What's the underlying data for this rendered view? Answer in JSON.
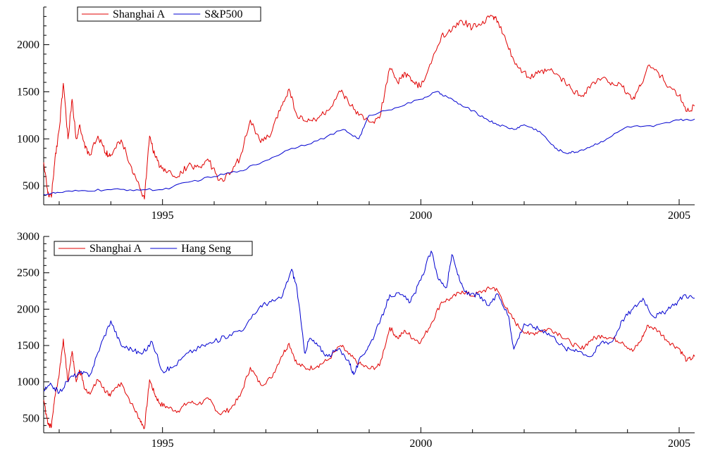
{
  "chart_data": [
    {
      "type": "line",
      "title": "",
      "xlabel": "",
      "ylabel": "",
      "xlim": [
        1992.7,
        2005.3
      ],
      "ylim": [
        300,
        2400
      ],
      "xticks": [
        1995,
        2000,
        2005
      ],
      "xtick_labels": [
        "1995",
        "2000",
        "2005"
      ],
      "yticks": [
        500,
        1000,
        1500,
        2000
      ],
      "ytick_labels": [
        "500",
        "1000",
        "1500",
        "2000"
      ],
      "grid": false,
      "legend": "top-left",
      "series": [
        {
          "name": "Shanghai A",
          "color": "#e00000",
          "x": [
            1992.7,
            1992.78,
            1992.85,
            1992.92,
            1993.0,
            1993.08,
            1993.17,
            1993.25,
            1993.33,
            1993.4,
            1993.5,
            1993.6,
            1993.75,
            1993.9,
            1994.0,
            1994.2,
            1994.4,
            1994.55,
            1994.65,
            1994.75,
            1994.85,
            1994.95,
            1995.1,
            1995.3,
            1995.5,
            1995.7,
            1995.9,
            1996.1,
            1996.3,
            1996.5,
            1996.7,
            1996.9,
            1997.1,
            1997.3,
            1997.45,
            1997.6,
            1997.8,
            1998.0,
            1998.2,
            1998.45,
            1998.6,
            1998.8,
            1999.0,
            1999.2,
            1999.4,
            1999.55,
            1999.7,
            1999.85,
            2000.0,
            2000.2,
            2000.4,
            2000.6,
            2000.8,
            2001.0,
            2001.2,
            2001.4,
            2001.5,
            2001.7,
            2001.9,
            2002.1,
            2002.3,
            2002.5,
            2002.7,
            2002.9,
            2003.1,
            2003.3,
            2003.5,
            2003.7,
            2003.9,
            2004.1,
            2004.25,
            2004.4,
            2004.6,
            2004.8,
            2005.0,
            2005.15,
            2005.3
          ],
          "values": [
            750,
            420,
            380,
            800,
            1100,
            1590,
            1000,
            1420,
            1000,
            1150,
            900,
            830,
            1030,
            850,
            830,
            990,
            700,
            500,
            360,
            1030,
            830,
            700,
            650,
            600,
            720,
            700,
            760,
            560,
            620,
            800,
            1200,
            960,
            1050,
            1350,
            1530,
            1250,
            1180,
            1220,
            1300,
            1500,
            1380,
            1250,
            1180,
            1220,
            1750,
            1600,
            1700,
            1600,
            1550,
            1800,
            2100,
            2150,
            2250,
            2180,
            2250,
            2300,
            2240,
            1950,
            1750,
            1650,
            1700,
            1730,
            1650,
            1540,
            1450,
            1580,
            1640,
            1600,
            1550,
            1420,
            1560,
            1780,
            1700,
            1550,
            1460,
            1290,
            1350
          ]
        },
        {
          "name": "S&P500",
          "color": "#0000d0",
          "x": [
            1992.7,
            1993.0,
            1993.5,
            1994.0,
            1994.5,
            1995.0,
            1995.5,
            1996.0,
            1996.5,
            1997.0,
            1997.5,
            1998.0,
            1998.5,
            1998.8,
            1999.0,
            1999.5,
            2000.0,
            2000.3,
            2000.5,
            2000.8,
            2001.0,
            2001.3,
            2001.5,
            2001.8,
            2002.0,
            2002.3,
            2002.6,
            2002.8,
            2003.0,
            2003.3,
            2003.6,
            2004.0,
            2004.5,
            2005.0,
            2005.3
          ],
          "values": [
            410,
            430,
            450,
            460,
            460,
            460,
            540,
            600,
            660,
            770,
            900,
            980,
            1100,
            1000,
            1250,
            1330,
            1420,
            1500,
            1450,
            1350,
            1300,
            1200,
            1150,
            1100,
            1150,
            1080,
            900,
            850,
            860,
            920,
            1000,
            1130,
            1130,
            1200,
            1210
          ]
        }
      ]
    },
    {
      "type": "line",
      "title": "",
      "xlabel": "",
      "ylabel": "",
      "xlim": [
        1992.7,
        2005.3
      ],
      "ylim": [
        300,
        3000
      ],
      "xticks": [
        1995,
        2000,
        2005
      ],
      "xtick_labels": [
        "1995",
        "2000",
        "2005"
      ],
      "yticks": [
        500,
        1000,
        1500,
        2000,
        2500,
        3000
      ],
      "ytick_labels": [
        "500",
        "1000",
        "1500",
        "2000",
        "2500",
        "3000"
      ],
      "grid": false,
      "legend": "top-left",
      "series": [
        {
          "name": "Shanghai A",
          "color": "#e00000",
          "x": [
            1992.7,
            1992.78,
            1992.85,
            1992.92,
            1993.0,
            1993.08,
            1993.17,
            1993.25,
            1993.33,
            1993.4,
            1993.5,
            1993.6,
            1993.75,
            1993.9,
            1994.0,
            1994.2,
            1994.4,
            1994.55,
            1994.65,
            1994.75,
            1994.85,
            1994.95,
            1995.1,
            1995.3,
            1995.5,
            1995.7,
            1995.9,
            1996.1,
            1996.3,
            1996.5,
            1996.7,
            1996.9,
            1997.1,
            1997.3,
            1997.45,
            1997.6,
            1997.8,
            1998.0,
            1998.2,
            1998.45,
            1998.6,
            1998.8,
            1999.0,
            1999.2,
            1999.4,
            1999.55,
            1999.7,
            1999.85,
            2000.0,
            2000.2,
            2000.4,
            2000.6,
            2000.8,
            2001.0,
            2001.2,
            2001.4,
            2001.5,
            2001.7,
            2001.9,
            2002.1,
            2002.3,
            2002.5,
            2002.7,
            2002.9,
            2003.1,
            2003.3,
            2003.5,
            2003.7,
            2003.9,
            2004.1,
            2004.25,
            2004.4,
            2004.6,
            2004.8,
            2005.0,
            2005.15,
            2005.3
          ],
          "values": [
            750,
            420,
            380,
            800,
            1100,
            1590,
            1000,
            1420,
            1000,
            1150,
            900,
            830,
            1030,
            850,
            830,
            990,
            700,
            500,
            360,
            1030,
            830,
            700,
            650,
            600,
            720,
            700,
            760,
            560,
            620,
            800,
            1200,
            960,
            1050,
            1350,
            1530,
            1250,
            1180,
            1220,
            1300,
            1500,
            1380,
            1250,
            1180,
            1220,
            1750,
            1600,
            1700,
            1600,
            1550,
            1800,
            2100,
            2150,
            2250,
            2180,
            2250,
            2300,
            2240,
            1950,
            1750,
            1650,
            1700,
            1730,
            1650,
            1540,
            1450,
            1580,
            1640,
            1600,
            1550,
            1420,
            1560,
            1780,
            1700,
            1550,
            1460,
            1290,
            1350
          ]
        },
        {
          "name": "Hang Seng",
          "color": "#0000d0",
          "x": [
            1992.7,
            1992.85,
            1993.0,
            1993.2,
            1993.4,
            1993.6,
            1993.8,
            1994.0,
            1994.2,
            1994.4,
            1994.6,
            1994.8,
            1995.0,
            1995.2,
            1995.5,
            1995.8,
            1996.0,
            1996.3,
            1996.6,
            1996.9,
            1997.1,
            1997.3,
            1997.5,
            1997.6,
            1997.75,
            1997.85,
            1998.0,
            1998.2,
            1998.4,
            1998.6,
            1998.7,
            1998.85,
            1999.0,
            1999.2,
            1999.4,
            1999.6,
            1999.8,
            2000.0,
            2000.2,
            2000.35,
            2000.5,
            2000.6,
            2000.75,
            2000.9,
            2001.1,
            2001.3,
            2001.5,
            2001.7,
            2001.8,
            2002.0,
            2002.2,
            2002.4,
            2002.6,
            2002.8,
            2003.0,
            2003.3,
            2003.5,
            2003.7,
            2003.9,
            2004.1,
            2004.3,
            2004.5,
            2004.7,
            2004.9,
            2005.1,
            2005.3
          ],
          "values": [
            880,
            960,
            850,
            1050,
            1120,
            1100,
            1500,
            1840,
            1500,
            1450,
            1380,
            1550,
            1150,
            1200,
            1400,
            1500,
            1550,
            1650,
            1750,
            2050,
            2100,
            2150,
            2550,
            2300,
            1400,
            1600,
            1500,
            1350,
            1450,
            1300,
            1100,
            1350,
            1500,
            1800,
            2200,
            2200,
            2100,
            2400,
            2800,
            2400,
            2300,
            2750,
            2400,
            2200,
            2200,
            2050,
            2200,
            1900,
            1450,
            1800,
            1750,
            1700,
            1600,
            1450,
            1450,
            1350,
            1550,
            1550,
            1850,
            2000,
            2150,
            1900,
            1950,
            2050,
            2200,
            2150
          ]
        }
      ]
    }
  ]
}
